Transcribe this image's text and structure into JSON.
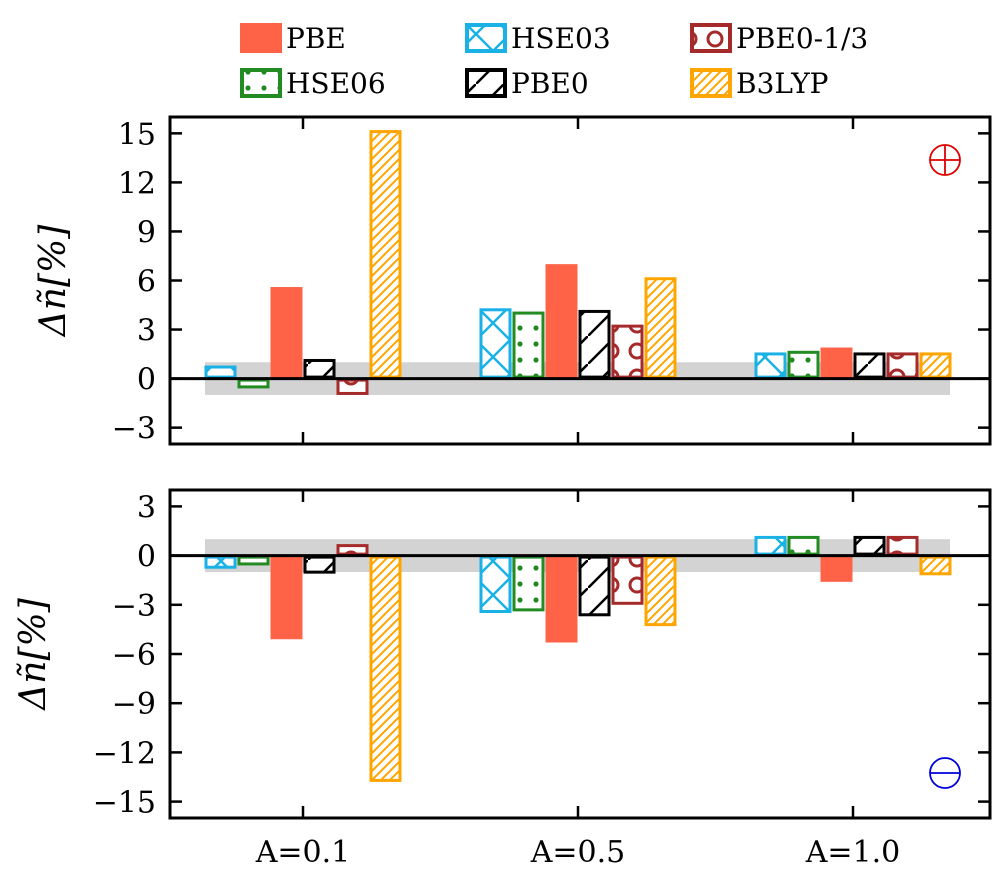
{
  "chart_data": {
    "type": "bar",
    "categories": [
      "A=0.1",
      "A=0.5",
      "A=1.0"
    ],
    "legend": {
      "placement": "top",
      "entries": [
        "PBE",
        "HSE03",
        "PBE0-1/3",
        "HSE06",
        "PBE0",
        "B3LYP"
      ]
    },
    "series_order": [
      "HSE03",
      "HSE06",
      "PBE",
      "PBE0",
      "PBE0-1/3",
      "B3LYP"
    ],
    "series_style": {
      "PBE": {
        "color": "#ff6347",
        "pattern": "solid"
      },
      "HSE03": {
        "color": "#1ab2e6",
        "pattern": "cross"
      },
      "PBE0-1/3": {
        "color": "#a52a2a",
        "pattern": "circles"
      },
      "HSE06": {
        "color": "#228b22",
        "pattern": "dots"
      },
      "PBE0": {
        "color": "#000000",
        "pattern": "diagonal"
      },
      "B3LYP": {
        "color": "#ffa500",
        "pattern": "dense-diagonal"
      }
    },
    "panels": [
      {
        "name": "plus",
        "symbol": "⊕",
        "symbol_color": "#dd0000",
        "ylabel": "Δñ[%]",
        "ylim": [
          -4,
          16
        ],
        "yticks": [
          15,
          12,
          9,
          6,
          3,
          0,
          -3
        ],
        "ytick_labels": [
          "15",
          "12",
          "9",
          "6",
          "3",
          "0",
          "−3"
        ],
        "band": [
          -1,
          1
        ],
        "series": [
          {
            "name": "HSE03",
            "values": [
              0.8,
              4.3,
              1.6
            ]
          },
          {
            "name": "HSE06",
            "values": [
              -0.6,
              4.1,
              1.7
            ]
          },
          {
            "name": "PBE",
            "values": [
              5.6,
              7.0,
              1.9
            ]
          },
          {
            "name": "PBE0",
            "values": [
              1.2,
              4.2,
              1.6
            ]
          },
          {
            "name": "PBE0-1/3",
            "values": [
              -1.0,
              3.3,
              1.6
            ]
          },
          {
            "name": "B3LYP",
            "values": [
              15.2,
              6.2,
              1.6
            ]
          }
        ]
      },
      {
        "name": "minus",
        "symbol": "⊖",
        "symbol_color": "#0000dd",
        "ylabel": "Δñ[%]",
        "ylim": [
          -16,
          4
        ],
        "yticks": [
          3,
          0,
          -3,
          -6,
          -9,
          -12,
          -15
        ],
        "ytick_labels": [
          "3",
          "0",
          "−3",
          "−6",
          "−9",
          "−12",
          "−15"
        ],
        "band": [
          -1,
          1
        ],
        "series": [
          {
            "name": "HSE03",
            "values": [
              -0.8,
              -3.5,
              1.2
            ]
          },
          {
            "name": "HSE06",
            "values": [
              -0.6,
              -3.4,
              1.2
            ]
          },
          {
            "name": "PBE",
            "values": [
              -5.1,
              -5.3,
              -1.6
            ]
          },
          {
            "name": "PBE0",
            "values": [
              -1.1,
              -3.7,
              1.2
            ]
          },
          {
            "name": "PBE0-1/3",
            "values": [
              0.7,
              -3.0,
              1.2
            ]
          },
          {
            "name": "B3LYP",
            "values": [
              -13.8,
              -4.3,
              -1.2
            ]
          }
        ]
      }
    ]
  }
}
